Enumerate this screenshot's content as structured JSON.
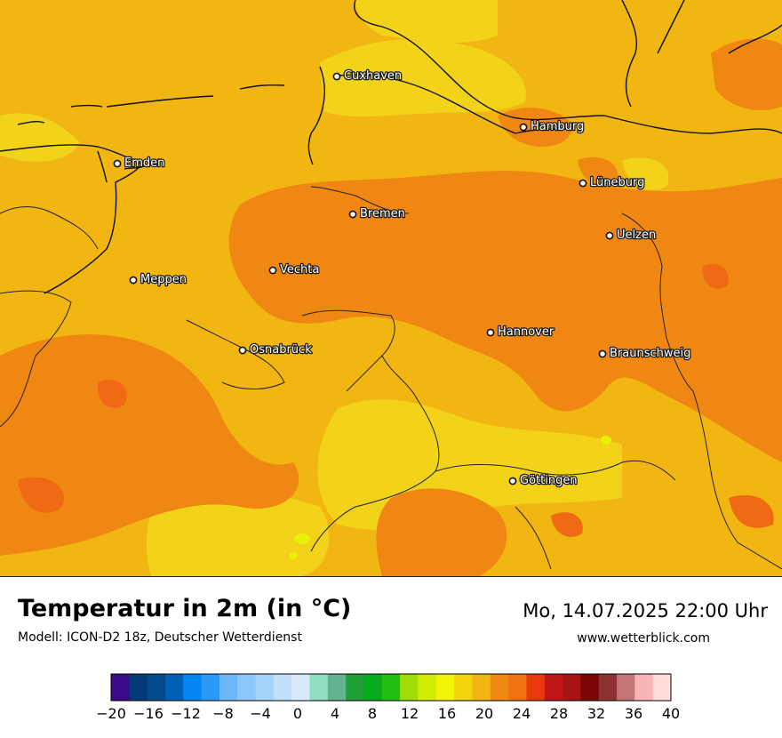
{
  "title": "Temperatur in 2m (in °C)",
  "subtitle": "Modell: ICON-D2 18z, Deutscher Wetterdienst",
  "datetime": "Mo, 14.07.2025 22:00 Uhr",
  "website": "www.wetterblick.com",
  "cities": [
    {
      "name": "Cuxhaven"
    },
    {
      "name": "Hamburg"
    },
    {
      "name": "Emden"
    },
    {
      "name": "Lüneburg"
    },
    {
      "name": "Bremen"
    },
    {
      "name": "Uelzen"
    },
    {
      "name": "Vechta"
    },
    {
      "name": "Meppen"
    },
    {
      "name": "Hannover"
    },
    {
      "name": "Osnabrück"
    },
    {
      "name": "Braunschweig"
    },
    {
      "name": "Göttingen"
    }
  ],
  "colors": {
    "temp_15_17": "#f2d31a",
    "temp_17_19": "#f2b612",
    "temp_19_21": "#f08712",
    "temp_21_23": "#ef6a12",
    "temp_13_15": "#e9f206"
  },
  "legend": {
    "min": -20,
    "max": 40,
    "ticks": [
      "−20",
      "−16",
      "−12",
      "−8",
      "−4",
      "0",
      "4",
      "8",
      "12",
      "16",
      "20",
      "24",
      "28",
      "32",
      "36",
      "40"
    ],
    "colors": [
      "#3a0a8a",
      "#023a7a",
      "#024a8a",
      "#0260b4",
      "#0286f2",
      "#2a9af6",
      "#6ab8fa",
      "#8cc6fb",
      "#a6d4fc",
      "#c2e0fc",
      "#d8eafc",
      "#92dcc0",
      "#62b490",
      "#1e9e34",
      "#06aa1e",
      "#22be12",
      "#a2dc06",
      "#d2ec04",
      "#f2f604",
      "#f2d40c",
      "#f2b612",
      "#f08912",
      "#ee7212",
      "#e63a0c",
      "#c21616",
      "#a81414",
      "#7a0606",
      "#8c3232",
      "#c47474",
      "#fab4b4",
      "#fedcdc"
    ]
  }
}
